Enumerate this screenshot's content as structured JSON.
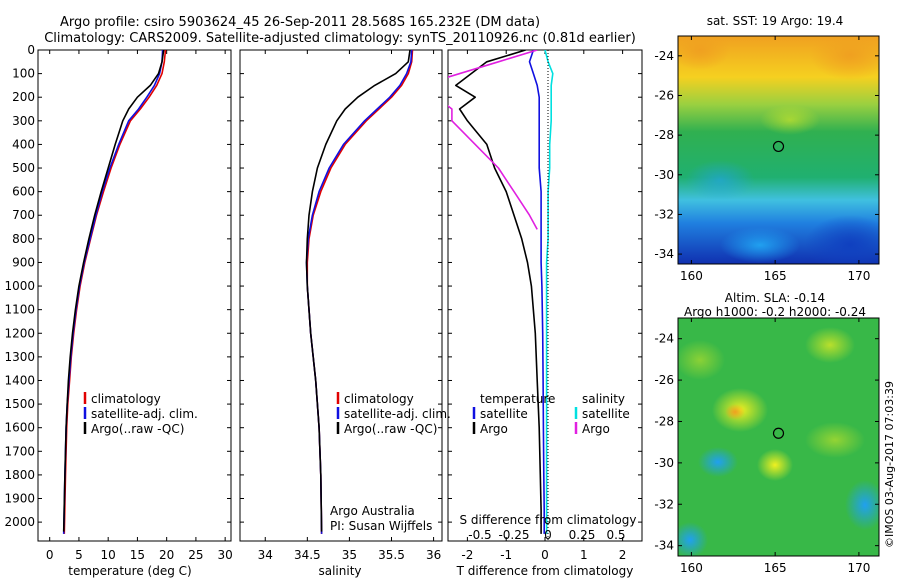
{
  "figure": {
    "title_line1": "Argo profile: csiro 5903624_45 26-Sep-2011 28.568S 165.232E (DM data)",
    "title_line2": "Climatology: CARS2009. Satellite-adjusted climatology: synTS_20110926.nc (0.81d earlier)",
    "footer_stamp": "©IMOS 03-Aug-2017 07:03:39"
  },
  "colors": {
    "climatology": "#e00000",
    "satellite_adj": "#1010e0",
    "argo": "#000000",
    "salinity_satellite": "#00e0e0",
    "salinity_argo": "#e020e0"
  },
  "chart_data": [
    {
      "type": "line",
      "panel": "temperature",
      "xlabel": "temperature (deg C)",
      "xlim": [
        -2,
        31
      ],
      "xticks": [
        0,
        5,
        10,
        15,
        20,
        25,
        30
      ],
      "ylabel": "",
      "ylim": [
        2080,
        0
      ],
      "yticks": [
        0,
        100,
        200,
        300,
        400,
        500,
        600,
        700,
        800,
        900,
        1000,
        1100,
        1200,
        1300,
        1400,
        1500,
        1600,
        1700,
        1800,
        1900,
        2000
      ],
      "legend": [
        "climatology",
        "satellite-adj. clim.",
        "Argo(..raw -QC)"
      ],
      "series": [
        {
          "name": "climatology",
          "color": "#e00000",
          "x": [
            19.8,
            19.6,
            19.2,
            18.3,
            17.0,
            15.5,
            13.8,
            12.0,
            10.5,
            9.2,
            8.0,
            7.0,
            6.0,
            5.2,
            4.6,
            4.1,
            3.7,
            3.4,
            3.1,
            2.9,
            2.7,
            2.5
          ],
          "y": [
            0,
            50,
            100,
            150,
            200,
            250,
            300,
            400,
            500,
            600,
            700,
            800,
            900,
            1000,
            1100,
            1200,
            1300,
            1400,
            1500,
            1600,
            1800,
            2050
          ]
        },
        {
          "name": "satellite-adj. clim.",
          "color": "#1010e0",
          "x": [
            19.3,
            19.2,
            18.8,
            17.9,
            16.6,
            15.2,
            13.5,
            11.8,
            10.3,
            9.0,
            7.9,
            6.9,
            5.9,
            5.1,
            4.5,
            4.0,
            3.6,
            3.3,
            3.0,
            2.8,
            2.6,
            2.4
          ],
          "y": [
            0,
            50,
            100,
            150,
            200,
            250,
            300,
            400,
            500,
            600,
            700,
            800,
            900,
            1000,
            1100,
            1200,
            1300,
            1400,
            1500,
            1600,
            1800,
            2050
          ]
        },
        {
          "name": "Argo(..raw -QC)",
          "color": "#000000",
          "x": [
            19.5,
            19.2,
            18.6,
            17.2,
            15.0,
            13.5,
            12.5,
            11.2,
            10.0,
            8.8,
            7.7,
            6.7,
            5.8,
            5.0,
            4.4,
            3.9,
            3.5,
            3.2,
            3.0,
            2.8,
            2.6,
            2.4
          ],
          "y": [
            0,
            50,
            100,
            150,
            200,
            250,
            300,
            400,
            500,
            600,
            700,
            800,
            900,
            1000,
            1100,
            1200,
            1300,
            1400,
            1500,
            1600,
            1800,
            2040
          ]
        }
      ]
    },
    {
      "type": "line",
      "panel": "salinity",
      "xlabel": "salinity",
      "xlim": [
        33.7,
        36.1
      ],
      "xticks": [
        34,
        34.5,
        35,
        35.5,
        36
      ],
      "ylim": [
        2080,
        0
      ],
      "legend": [
        "climatology",
        "satellite-adj. clim.",
        "Argo(..raw -QC)"
      ],
      "annotation_line1": "Argo Australia",
      "annotation_line2": "PI: Susan Wijffels",
      "series": [
        {
          "name": "climatology",
          "color": "#e00000",
          "x": [
            35.75,
            35.74,
            35.7,
            35.62,
            35.5,
            35.35,
            35.2,
            34.95,
            34.78,
            34.66,
            34.57,
            34.52,
            34.5,
            34.5,
            34.52,
            34.54,
            34.57,
            34.6,
            34.62,
            34.64,
            34.66,
            34.67
          ],
          "y": [
            0,
            50,
            100,
            150,
            200,
            250,
            300,
            400,
            500,
            600,
            700,
            800,
            900,
            1000,
            1100,
            1200,
            1300,
            1400,
            1500,
            1600,
            1800,
            2050
          ]
        },
        {
          "name": "satellite-adj. clim.",
          "color": "#1010e0",
          "x": [
            35.74,
            35.73,
            35.68,
            35.6,
            35.48,
            35.33,
            35.18,
            34.93,
            34.76,
            34.64,
            34.56,
            34.51,
            34.49,
            34.5,
            34.52,
            34.54,
            34.57,
            34.6,
            34.62,
            34.64,
            34.66,
            34.67
          ],
          "y": [
            0,
            50,
            100,
            150,
            200,
            250,
            300,
            400,
            500,
            600,
            700,
            800,
            900,
            1000,
            1100,
            1200,
            1300,
            1400,
            1500,
            1600,
            1800,
            2050
          ]
        },
        {
          "name": "Argo(..raw -QC)",
          "color": "#000000",
          "x": [
            35.72,
            35.7,
            35.55,
            35.3,
            35.1,
            34.95,
            34.85,
            34.72,
            34.62,
            34.56,
            34.52,
            34.5,
            34.49,
            34.5,
            34.52,
            34.54,
            34.57,
            34.6,
            34.62,
            34.64,
            34.66,
            34.67
          ],
          "y": [
            0,
            50,
            100,
            150,
            200,
            250,
            300,
            400,
            500,
            600,
            700,
            800,
            900,
            1000,
            1100,
            1200,
            1300,
            1400,
            1500,
            1600,
            1800,
            2040
          ]
        }
      ]
    },
    {
      "type": "line",
      "panel": "difference",
      "xlabel": "T difference from climatology",
      "xlabel_top": "S difference from climatology",
      "xlim": [
        -2.5,
        2.5
      ],
      "xticks": [
        -2,
        -1,
        0,
        1,
        2
      ],
      "s_xticks": [
        "-0.5",
        "-0.25",
        "0",
        "0.25",
        "0.5"
      ],
      "ylim": [
        2080,
        0
      ],
      "legend_temperature_title": "temperature",
      "legend_salinity_title": "salinity",
      "legend": [
        "satellite",
        "Argo",
        "satellite",
        "Argo"
      ],
      "series": [
        {
          "name": "temperature satellite",
          "color": "#1010e0",
          "x": [
            -0.3,
            -0.4,
            -0.3,
            -0.2,
            -0.15,
            -0.15,
            -0.15,
            -0.15,
            -0.1,
            -0.1,
            -0.1,
            -0.1,
            -0.08,
            -0.06,
            -0.05,
            -0.04,
            -0.03,
            -0.02,
            -0.02
          ],
          "y": [
            0,
            50,
            100,
            150,
            200,
            300,
            400,
            500,
            600,
            700,
            800,
            900,
            1000,
            1200,
            1400,
            1600,
            1800,
            1950,
            2050
          ]
        },
        {
          "name": "temperature Argo",
          "color": "#000000",
          "x": [
            -0.5,
            -1.5,
            -2.3,
            -1.8,
            -2.2,
            -2.0,
            -1.5,
            -1.3,
            -1.0,
            -0.8,
            -0.6,
            -0.45,
            -0.35,
            -0.25,
            -0.2,
            -0.15,
            -0.12,
            -0.1,
            -0.1
          ],
          "y": [
            0,
            50,
            150,
            200,
            250,
            300,
            400,
            500,
            600,
            700,
            800,
            900,
            1000,
            1200,
            1400,
            1600,
            1800,
            1950,
            2050
          ]
        },
        {
          "name": "salinity satellite",
          "color": "#00e0e0",
          "x": [
            0.0,
            0.02,
            0.05,
            0.04,
            0.04,
            0.04,
            0.03,
            0.03,
            0.02,
            0.02,
            0.02,
            0.01,
            0.01,
            0.01,
            0.01,
            0.01,
            0.01,
            0.01,
            0.01
          ],
          "y": [
            0,
            50,
            100,
            150,
            200,
            300,
            400,
            500,
            600,
            700,
            800,
            900,
            1000,
            1200,
            1400,
            1600,
            1800,
            1950,
            2050
          ]
        },
        {
          "name": "salinity Argo",
          "color": "#e020e0",
          "x": [
            -0.05,
            -0.3,
            -0.8,
            -0.7,
            -0.6,
            -0.6,
            -0.45,
            -0.3,
            -0.2,
            -0.1,
            -0.05
          ],
          "y": [
            0,
            50,
            150,
            200,
            250,
            300,
            400,
            500,
            600,
            700,
            760
          ]
        }
      ]
    }
  ],
  "maps": [
    {
      "title": "sat. SST: 19 Argo: 19.4",
      "xticks": [
        "160",
        "165",
        "170"
      ],
      "yticks": [
        "-24",
        "-26",
        "-28",
        "-30",
        "-32",
        "-34"
      ],
      "lon_range": [
        159.2,
        171.2
      ],
      "lat_range": [
        -34.5,
        -23.0
      ],
      "argo_lon": 165.2,
      "argo_lat": -28.57
    },
    {
      "title_line1": "Altim. SLA: -0.14",
      "title_line2": "Argo h1000: -0.2 h2000: -0.24",
      "xticks": [
        "160",
        "165",
        "170"
      ],
      "yticks": [
        "-24",
        "-26",
        "-28",
        "-30",
        "-32",
        "-34"
      ],
      "lon_range": [
        159.2,
        171.2
      ],
      "lat_range": [
        -34.5,
        -23.0
      ],
      "argo_lon": 165.2,
      "argo_lat": -28.57
    }
  ]
}
